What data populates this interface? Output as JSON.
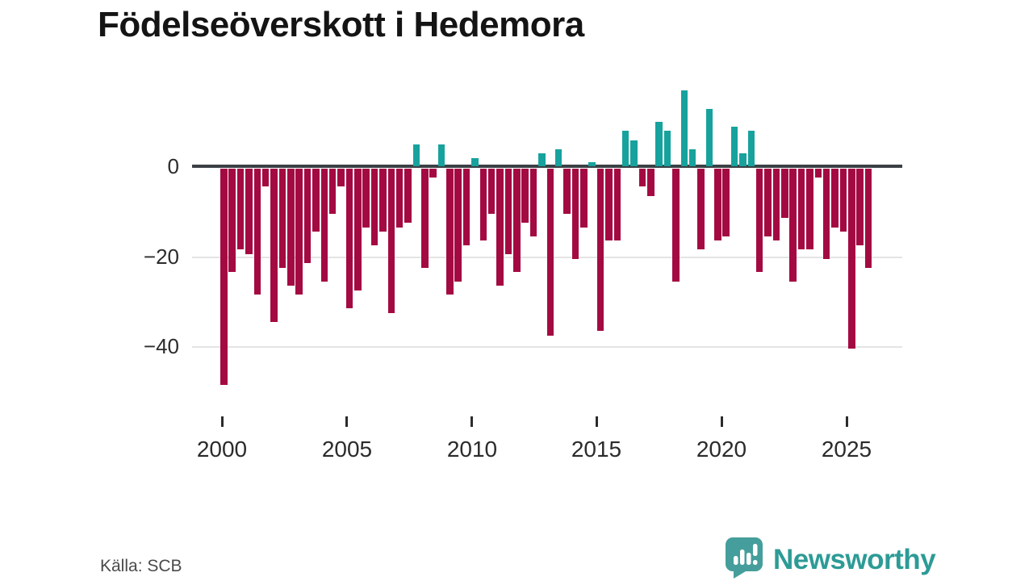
{
  "title": "Födelseöverskott i Hedemora",
  "source": "Källa: SCB",
  "logo": {
    "text": "Newsworthy"
  },
  "colors": {
    "negative": "#a40a42",
    "positive": "#17a29d",
    "zero_line": "#3b4045",
    "gridline": "#e4e4e4",
    "axis_text": "#2b2b2b",
    "title_text": "#141414",
    "source_text": "#4a4a4a",
    "logo_bubble": "#459e9b",
    "logo_text": "#2d9b96",
    "background": "#ffffff"
  },
  "chart_data": {
    "type": "bar",
    "title": "Födelseöverskott i Hedemora",
    "xlabel": "",
    "ylabel": "",
    "start_year": 2000,
    "bars_per_year": 3,
    "x_tick_labels": [
      "2000",
      "2005",
      "2010",
      "2015",
      "2020",
      "2025"
    ],
    "y_tick_labels": [
      "0",
      "−20",
      "−40"
    ],
    "y_ticks": [
      0,
      -20,
      -40
    ],
    "ylim": [
      -50,
      18
    ],
    "grid": "horizontal",
    "legend": "none",
    "values": [
      -48,
      -23,
      -18,
      -19,
      -28,
      -4,
      -34,
      -22,
      -26,
      -28,
      -21,
      -14,
      -25,
      -10,
      -4,
      -31,
      -27,
      -13,
      -17,
      -14,
      -32,
      -13,
      -12,
      5,
      -22,
      -2,
      5,
      -28,
      -25,
      -17,
      2,
      -16,
      -10,
      -26,
      -19,
      -23,
      -12,
      -15,
      3,
      -37,
      4,
      -10,
      -20,
      -13,
      1,
      -36,
      -16,
      -16,
      8,
      6,
      -4,
      -6,
      10,
      8,
      -25,
      17,
      4,
      -18,
      13,
      -16,
      -15,
      9,
      3,
      8,
      -23,
      -15,
      -16,
      -11,
      -25,
      -18,
      -18,
      -2,
      -20,
      -13,
      -14,
      -40,
      -17,
      -22
    ]
  }
}
